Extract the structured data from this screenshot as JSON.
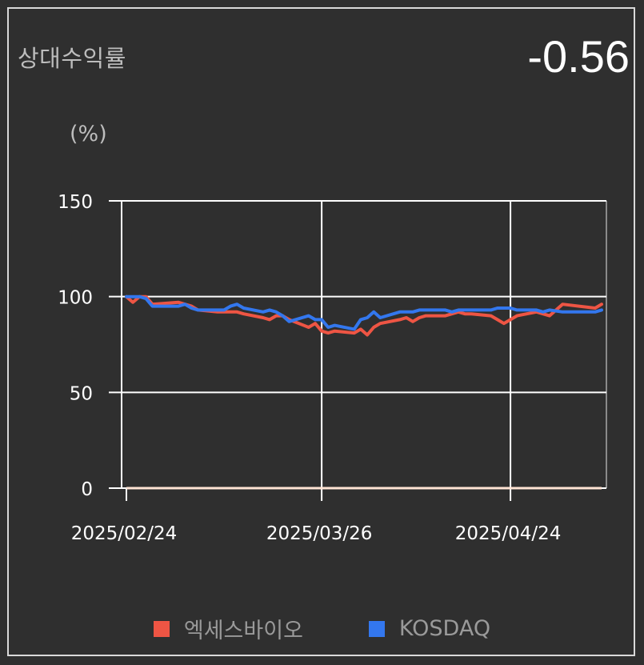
{
  "header": {
    "title": "상대수익률",
    "value": "-0.56",
    "unit": "(%)"
  },
  "colors": {
    "background": "#2f2f2f",
    "grid": "#ffffff",
    "series_stock": "#ee5544",
    "series_index": "#3377ee",
    "baseline": "#ffe4d4"
  },
  "chart_data": {
    "type": "line",
    "title": "상대수익률",
    "ylabel": "(%)",
    "ylim": [
      0,
      150
    ],
    "yticks": [
      0,
      50,
      100,
      150
    ],
    "xticks": [
      "2025/02/24",
      "2025/03/26",
      "2025/04/24"
    ],
    "x_range": [
      "2025/02/24",
      "2025/05/08"
    ],
    "grid": true,
    "legend_position": "bottom",
    "series": [
      {
        "name": "엑세스바이오",
        "x": [
          "2025/02/24",
          "2025/02/25",
          "2025/02/26",
          "2025/02/27",
          "2025/02/28",
          "2025/03/04",
          "2025/03/05",
          "2025/03/06",
          "2025/03/07",
          "2025/03/10",
          "2025/03/11",
          "2025/03/12",
          "2025/03/13",
          "2025/03/14",
          "2025/03/17",
          "2025/03/18",
          "2025/03/19",
          "2025/03/20",
          "2025/03/21",
          "2025/03/24",
          "2025/03/25",
          "2025/03/26",
          "2025/03/27",
          "2025/03/28",
          "2025/03/31",
          "2025/04/01",
          "2025/04/02",
          "2025/04/03",
          "2025/04/04",
          "2025/04/07",
          "2025/04/08",
          "2025/04/09",
          "2025/04/10",
          "2025/04/11",
          "2025/04/14",
          "2025/04/15",
          "2025/04/16",
          "2025/04/17",
          "2025/04/18",
          "2025/04/21",
          "2025/04/22",
          "2025/04/23",
          "2025/04/24",
          "2025/04/25",
          "2025/04/28",
          "2025/04/29",
          "2025/04/30",
          "2025/05/02",
          "2025/05/07",
          "2025/05/08"
        ],
        "values": [
          100,
          97,
          100,
          100,
          96,
          97,
          96,
          95,
          93,
          92,
          92,
          92,
          92,
          91,
          89,
          88,
          90,
          90,
          88,
          84,
          86,
          82,
          81,
          82,
          81,
          83,
          80,
          84,
          86,
          88,
          89,
          87,
          89,
          90,
          90,
          91,
          92,
          91,
          91,
          90,
          88,
          86,
          88,
          90,
          92,
          91,
          90,
          96,
          94,
          96
        ]
      },
      {
        "name": "KOSDAQ",
        "x": [
          "2025/02/24",
          "2025/02/25",
          "2025/02/26",
          "2025/02/27",
          "2025/02/28",
          "2025/03/04",
          "2025/03/05",
          "2025/03/06",
          "2025/03/07",
          "2025/03/10",
          "2025/03/11",
          "2025/03/12",
          "2025/03/13",
          "2025/03/14",
          "2025/03/17",
          "2025/03/18",
          "2025/03/19",
          "2025/03/20",
          "2025/03/21",
          "2025/03/24",
          "2025/03/25",
          "2025/03/26",
          "2025/03/27",
          "2025/03/28",
          "2025/03/31",
          "2025/04/01",
          "2025/04/02",
          "2025/04/03",
          "2025/04/04",
          "2025/04/07",
          "2025/04/08",
          "2025/04/09",
          "2025/04/10",
          "2025/04/11",
          "2025/04/14",
          "2025/04/15",
          "2025/04/16",
          "2025/04/17",
          "2025/04/18",
          "2025/04/21",
          "2025/04/22",
          "2025/04/23",
          "2025/04/24",
          "2025/04/25",
          "2025/04/28",
          "2025/04/29",
          "2025/04/30",
          "2025/05/02",
          "2025/05/07",
          "2025/05/08"
        ],
        "values": [
          100,
          100,
          100,
          99,
          95,
          95,
          96,
          94,
          93,
          93,
          93,
          95,
          96,
          94,
          92,
          93,
          92,
          90,
          87,
          90,
          88,
          88,
          84,
          85,
          83,
          88,
          89,
          92,
          89,
          92,
          92,
          92,
          93,
          93,
          93,
          92,
          93,
          93,
          93,
          93,
          94,
          94,
          94,
          93,
          93,
          92,
          93,
          92,
          92,
          93
        ]
      }
    ],
    "baseline_value": 0
  }
}
